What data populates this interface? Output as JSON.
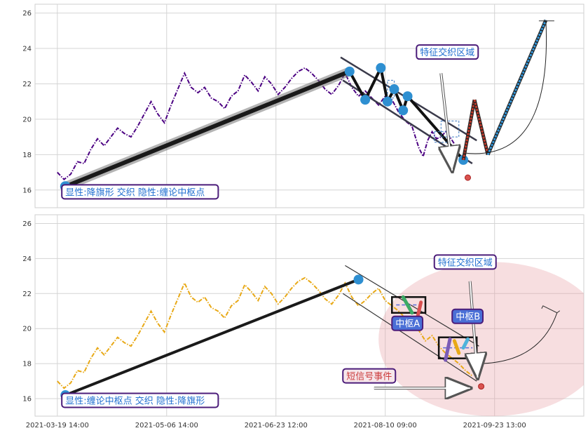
{
  "chart_data": [
    {
      "type": "line",
      "panel": "top",
      "ylim": [
        15.0,
        26.5
      ],
      "yticks": [
        16,
        18,
        20,
        22,
        24,
        26
      ],
      "grid": true,
      "price_color": "#4B0082",
      "price_series": [
        [
          0.0,
          17.0
        ],
        [
          1.5,
          16.6
        ],
        [
          3.0,
          16.9
        ],
        [
          4.5,
          17.6
        ],
        [
          6.0,
          17.5
        ],
        [
          7.5,
          18.3
        ],
        [
          9.0,
          18.9
        ],
        [
          10.5,
          18.5
        ],
        [
          12.0,
          19.0
        ],
        [
          13.5,
          19.5
        ],
        [
          15.0,
          19.2
        ],
        [
          16.5,
          19.0
        ],
        [
          18.0,
          19.6
        ],
        [
          19.5,
          20.3
        ],
        [
          21.0,
          21.0
        ],
        [
          22.5,
          20.3
        ],
        [
          24.0,
          19.8
        ],
        [
          25.5,
          20.8
        ],
        [
          27.0,
          21.7
        ],
        [
          28.5,
          22.6
        ],
        [
          30.0,
          21.8
        ],
        [
          31.5,
          21.5
        ],
        [
          33.0,
          21.8
        ],
        [
          34.5,
          21.2
        ],
        [
          36.0,
          21.0
        ],
        [
          37.5,
          20.6
        ],
        [
          39.0,
          21.3
        ],
        [
          40.5,
          21.6
        ],
        [
          42.0,
          22.5
        ],
        [
          43.5,
          22.1
        ],
        [
          45.0,
          21.6
        ],
        [
          46.5,
          22.4
        ],
        [
          48.0,
          22.0
        ],
        [
          49.5,
          21.4
        ],
        [
          51.0,
          21.8
        ],
        [
          52.5,
          22.3
        ],
        [
          54.0,
          22.7
        ],
        [
          55.5,
          22.9
        ],
        [
          57.0,
          22.6
        ],
        [
          58.5,
          22.2
        ],
        [
          60.0,
          21.7
        ],
        [
          61.5,
          21.4
        ],
        [
          63.0,
          21.9
        ],
        [
          64.5,
          22.6
        ],
        [
          66.0,
          21.8
        ],
        [
          67.5,
          21.3
        ],
        [
          69.0,
          21.6
        ],
        [
          70.5,
          21.2
        ],
        [
          72.0,
          20.8
        ],
        [
          73.5,
          21.3
        ],
        [
          75.0,
          21.1
        ],
        [
          76.5,
          20.4
        ],
        [
          78.0,
          19.9
        ],
        [
          79.5,
          19.6
        ],
        [
          81.0,
          18.4
        ],
        [
          82.0,
          17.9
        ],
        [
          83.0,
          18.8
        ],
        [
          84.0,
          19.3
        ],
        [
          85.0,
          18.9
        ],
        [
          86.0,
          19.0
        ],
        [
          87.0,
          19.3
        ],
        [
          88.0,
          19.0
        ],
        [
          89.0,
          18.6
        ]
      ],
      "trend_line": {
        "from": [
          1.8,
          16.2
        ],
        "to": [
          65.5,
          22.7
        ]
      },
      "zigzag_points": [
        [
          65.5,
          22.7
        ],
        [
          69.0,
          21.1
        ],
        [
          72.5,
          22.9
        ],
        [
          74.0,
          21.0
        ],
        [
          75.5,
          21.7
        ],
        [
          77.5,
          20.5
        ],
        [
          78.5,
          21.3
        ],
        [
          91.0,
          17.7
        ]
      ],
      "channel_lines": [
        {
          "from": [
            63.5,
            23.5
          ],
          "to": [
            94.0,
            18.8
          ]
        },
        {
          "from": [
            64.0,
            22.2
          ],
          "to": [
            93.0,
            17.5
          ]
        }
      ],
      "projection": [
        [
          91.0,
          17.7
        ],
        [
          93.5,
          21.1
        ],
        [
          96.5,
          18.0
        ],
        [
          109.5,
          25.6
        ]
      ],
      "projection_colors": [
        "#c0392b",
        "#c0392b",
        "#3498db"
      ],
      "target_curve": {
        "from": [
          91.0,
          18.1
        ],
        "ctrl": [
          111.0,
          17.5
        ],
        "to": [
          109.5,
          25.6
        ]
      },
      "annotations": [
        {
          "text": "显性:降旗形 交织 隐性:缠论中枢点",
          "color": "#1f6fd0",
          "x": 1.0,
          "y": 15.5
        },
        {
          "text": "特征交织区域",
          "color": "#1f6fd0",
          "x": 80.5,
          "y": 23.4
        }
      ]
    },
    {
      "type": "line",
      "panel": "bottom",
      "ylim": [
        15.0,
        26.5
      ],
      "yticks": [
        16,
        18,
        20,
        22,
        24,
        26
      ],
      "grid": true,
      "price_color": "#E8A917",
      "price_series": [
        [
          0.0,
          17.0
        ],
        [
          1.5,
          16.6
        ],
        [
          3.0,
          16.9
        ],
        [
          4.5,
          17.6
        ],
        [
          6.0,
          17.5
        ],
        [
          7.5,
          18.3
        ],
        [
          9.0,
          18.9
        ],
        [
          10.5,
          18.5
        ],
        [
          12.0,
          19.0
        ],
        [
          13.5,
          19.5
        ],
        [
          15.0,
          19.2
        ],
        [
          16.5,
          19.0
        ],
        [
          18.0,
          19.6
        ],
        [
          19.5,
          20.3
        ],
        [
          21.0,
          21.0
        ],
        [
          22.5,
          20.3
        ],
        [
          24.0,
          19.8
        ],
        [
          25.5,
          20.8
        ],
        [
          27.0,
          21.7
        ],
        [
          28.5,
          22.6
        ],
        [
          30.0,
          21.8
        ],
        [
          31.5,
          21.5
        ],
        [
          33.0,
          21.8
        ],
        [
          34.5,
          21.2
        ],
        [
          36.0,
          21.0
        ],
        [
          37.5,
          20.6
        ],
        [
          39.0,
          21.3
        ],
        [
          40.5,
          21.6
        ],
        [
          42.0,
          22.5
        ],
        [
          43.5,
          22.1
        ],
        [
          45.0,
          21.6
        ],
        [
          46.5,
          22.4
        ],
        [
          48.0,
          22.0
        ],
        [
          49.5,
          21.4
        ],
        [
          51.0,
          21.8
        ],
        [
          52.5,
          22.3
        ],
        [
          54.0,
          22.7
        ],
        [
          55.5,
          22.9
        ],
        [
          57.0,
          22.6
        ],
        [
          58.5,
          22.2
        ],
        [
          60.0,
          21.7
        ],
        [
          61.5,
          21.4
        ],
        [
          63.0,
          21.9
        ],
        [
          64.5,
          22.6
        ],
        [
          66.0,
          21.8
        ],
        [
          67.5,
          21.3
        ],
        [
          69.0,
          21.6
        ],
        [
          70.5,
          22.0
        ],
        [
          72.0,
          22.3
        ],
        [
          73.5,
          21.6
        ],
        [
          75.0,
          21.3
        ],
        [
          76.5,
          21.0
        ],
        [
          78.0,
          20.6
        ],
        [
          79.5,
          20.2
        ],
        [
          81.0,
          19.9
        ],
        [
          82.5,
          19.3
        ],
        [
          84.0,
          19.6
        ],
        [
          85.5,
          19.0
        ],
        [
          87.0,
          18.6
        ],
        [
          88.5,
          18.3
        ],
        [
          90.0,
          18.0
        ],
        [
          91.5,
          17.6
        ],
        [
          93.0,
          17.3
        ]
      ],
      "trend_line": {
        "from": [
          1.8,
          16.2
        ],
        "to": [
          67.5,
          22.8
        ]
      },
      "channel_lines": [
        {
          "from": [
            64.5,
            23.6
          ],
          "to": [
            94.5,
            19.0
          ]
        },
        {
          "from": [
            64.0,
            22.0
          ],
          "to": [
            94.0,
            17.0
          ]
        }
      ],
      "pivot_boxes": [
        {
          "label": "中枢A",
          "x": [
            75.0,
            82.5
          ],
          "y": [
            20.9,
            21.8
          ],
          "label_at": [
            75.0,
            19.9
          ]
        },
        {
          "label": "中枢B",
          "x": [
            85.5,
            94.0
          ],
          "y": [
            18.3,
            19.5
          ],
          "label_at": [
            88.5,
            20.3
          ]
        }
      ],
      "signal": {
        "text": "短信号事件",
        "color": "#cc3d3d",
        "at": [
          64.0,
          16.9
        ],
        "arrow_to": [
          92.5,
          16.6
        ]
      },
      "pivot_strokes": [
        {
          "color": "#3CAA65",
          "from": [
            77.5,
            21.8
          ],
          "to": [
            79.5,
            20.9
          ]
        },
        {
          "color": "#d95050",
          "from": [
            80.5,
            20.4
          ],
          "to": [
            81.5,
            21.5
          ]
        },
        {
          "color": "#7B5BB6",
          "from": [
            87.0,
            18.2
          ],
          "to": [
            88.0,
            19.4
          ]
        },
        {
          "color": "#E8A917",
          "from": [
            89.0,
            19.3
          ],
          "to": [
            90.0,
            18.6
          ]
        },
        {
          "color": "#4FB3DB",
          "from": [
            91.0,
            18.9
          ],
          "to": [
            92.0,
            19.4
          ]
        }
      ],
      "target_curve": {
        "from": [
          94.0,
          18.0
        ],
        "ctrl": [
          108.0,
          18.0
        ],
        "to": [
          112.0,
          20.9
        ]
      },
      "ellipse": {
        "cx": [
          97.5
        ],
        "cy": [
          19.4
        ],
        "rx": [
          25.5
        ],
        "ry": [
          4.4
        ]
      },
      "annotations": [
        {
          "text": "显性:缠论中枢点 交织 隐性:降旗形",
          "color": "#1f6fd0",
          "x": 1.0,
          "y": 15.5
        },
        {
          "text": "特征交织区域",
          "color": "#1f6fd0",
          "x": 84.5,
          "y": 23.4
        }
      ]
    }
  ],
  "xaxis": {
    "xlim": [
      -5.0,
      118.0
    ],
    "ticks": [
      {
        "x": 0.0,
        "label": "2021-03-19 14:00"
      },
      {
        "x": 24.5,
        "label": "2021-05-06 14:00"
      },
      {
        "x": 49.0,
        "label": "2021-06-23 12:00"
      },
      {
        "x": 73.5,
        "label": "2021-08-10 09:00"
      },
      {
        "x": 98.0,
        "label": "2021-09-23 13:00"
      }
    ]
  }
}
